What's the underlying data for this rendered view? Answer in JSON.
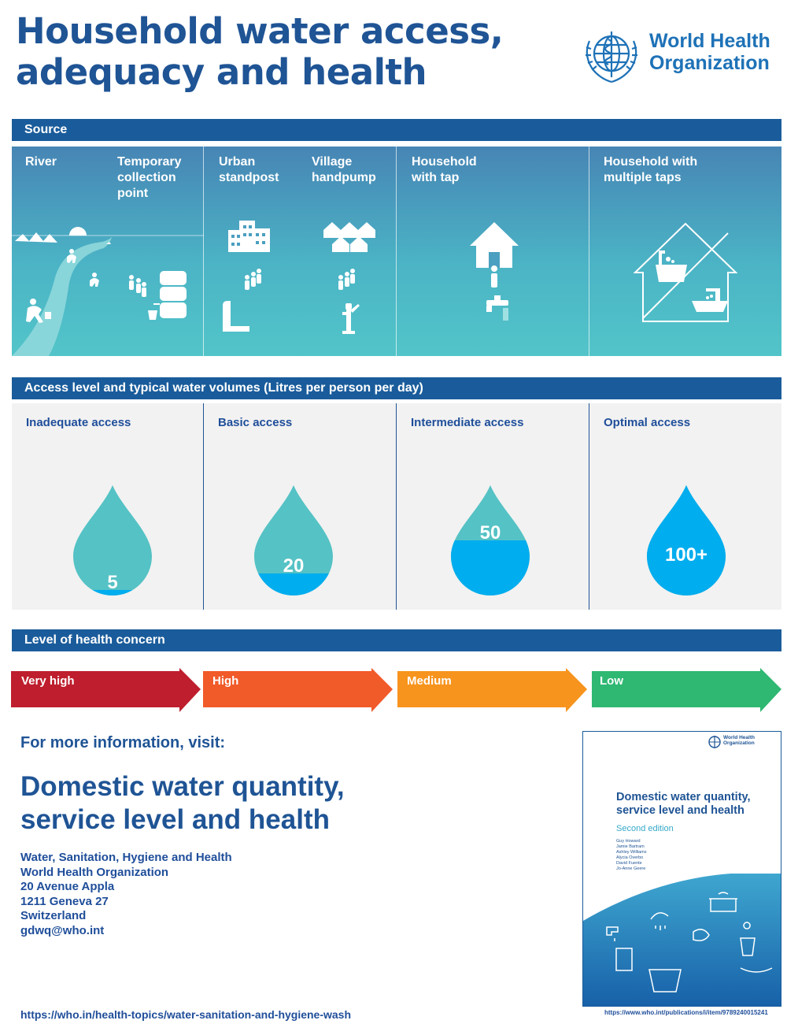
{
  "title": "Household water access, adequacy and health",
  "org": {
    "name_line1": "World Health",
    "name_line2": "Organization"
  },
  "sections": {
    "source": "Source",
    "access": "Access level and typical water volumes (Litres per person per day)",
    "health": "Level of health concern"
  },
  "sources": [
    {
      "label": "River"
    },
    {
      "label": "Temporary collection point"
    },
    {
      "label": "Urban standpost"
    },
    {
      "label": "Village handpump"
    },
    {
      "label": "Household with tap"
    },
    {
      "label": "Household with multiple taps"
    }
  ],
  "access_levels": [
    {
      "label": "Inadequate access",
      "volume": "5",
      "fill_fraction": 0.05
    },
    {
      "label": "Basic access",
      "volume": "20",
      "fill_fraction": 0.2
    },
    {
      "label": "Intermediate access",
      "volume": "50",
      "fill_fraction": 0.5
    },
    {
      "label": "Optimal access",
      "volume": "100+",
      "fill_fraction": 1.0
    }
  ],
  "health_levels": [
    {
      "label": "Very high",
      "color": "#be1e2d"
    },
    {
      "label": "High",
      "color": "#f15a29"
    },
    {
      "label": "Medium",
      "color": "#f7941d"
    },
    {
      "label": "Low",
      "color": "#2eb872"
    }
  ],
  "colors": {
    "drop_light": "#55c2c5",
    "drop_fill": "#00adee",
    "bar": "#1a5c9b"
  },
  "info": {
    "heading": "For more information, visit:",
    "title": "Domestic water quantity, service level and health",
    "address": [
      "Water, Sanitation, Hygiene and Health",
      "World Health Organization",
      "20 Avenue Appla",
      "1211 Geneva 27",
      "Switzerland",
      "gdwq@who.int"
    ],
    "url": "https://who.in/health-topics/water-sanitation-and-hygiene-wash"
  },
  "book": {
    "org": "World Health Organization",
    "title": "Domestic water quantity, service level and health",
    "edition": "Second edition",
    "authors": [
      "Guy Howard",
      "Jamie Bartram",
      "Ashley Williams",
      "Alycia Overbo",
      "David Fuente",
      "Jo-Anne Geere"
    ],
    "url": "https://www.who.int/publications/i/item/9789240015241"
  }
}
